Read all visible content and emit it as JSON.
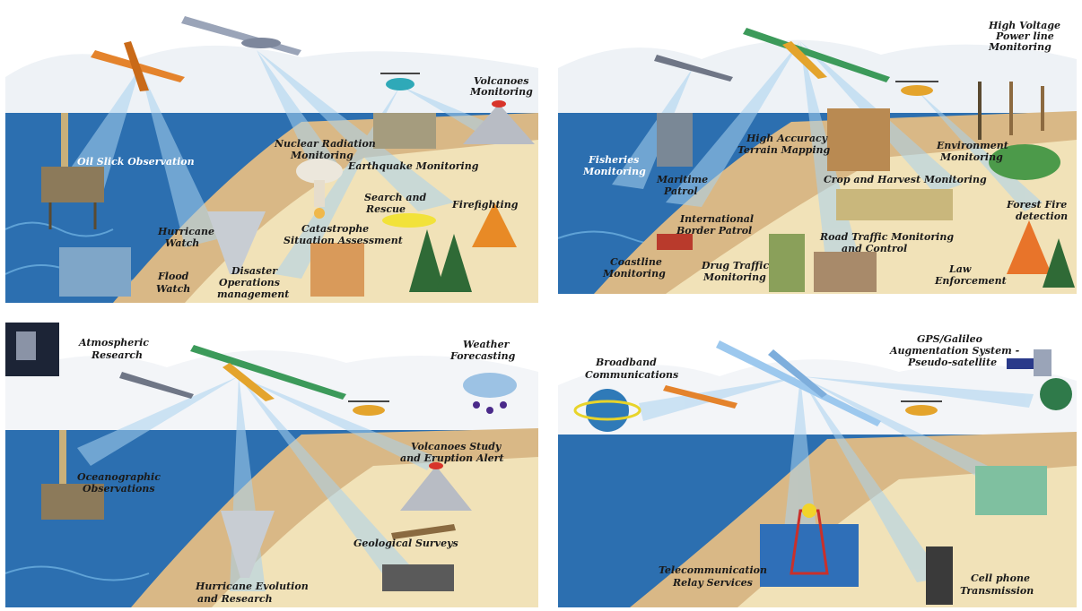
{
  "colors": {
    "sea": "#2c6fb0",
    "sea_light": "#5fa2d6",
    "sand": "#d9b886",
    "sand_light": "#f1e2b8",
    "sky": "#ffffff",
    "beam": "#a9d2ef",
    "label": "#1a1a1a"
  },
  "panels": [
    {
      "id": "civil-security",
      "labels": {
        "oil_slick": "Oil Slick Observation",
        "nuclear_1": "Nuclear Radiation",
        "nuclear_2": "Monitoring",
        "earthquake": "Earthquake Monitoring",
        "volcanoes_1": "Volcanoes",
        "volcanoes_2": "Monitoring",
        "search_1": "Search and",
        "search_2": "Rescue",
        "firefighting": "Firefighting",
        "hurricane_1": "Hurricane",
        "hurricane_2": "Watch",
        "catastrophe_1": "Catastrophe",
        "catastrophe_2": "Situation Assessment",
        "flood_1": "Flood",
        "flood_2": "Watch",
        "disaster_1": "Disaster",
        "disaster_2": "Operations",
        "disaster_3": "management"
      }
    },
    {
      "id": "surveillance",
      "labels": {
        "high_voltage_1": "High Voltage",
        "high_voltage_2": "Power line",
        "high_voltage_3": "Monitoring",
        "fisheries_1": "Fisheries",
        "fisheries_2": "Monitoring",
        "maritime_1": "Maritime",
        "maritime_2": "Patrol",
        "terrain_1": "High Accuracy",
        "terrain_2": "Terrain Mapping",
        "environment_1": "Environment",
        "environment_2": "Monitoring",
        "crop": "Crop and Harvest Monitoring",
        "border_1": "International",
        "border_2": "Border Patrol",
        "forest_fire_1": "Forest Fire",
        "forest_fire_2": "detection",
        "road_traffic_1": "Road Traffic Monitoring",
        "road_traffic_2": "and Control",
        "coastline_1": "Coastline",
        "coastline_2": "Monitoring",
        "drug_1": "Drug Traffic",
        "drug_2": "Monitoring",
        "law_1": "Law",
        "law_2": "Enforcement"
      }
    },
    {
      "id": "earth-science",
      "labels": {
        "atmospheric_1": "Atmospheric",
        "atmospheric_2": "Research",
        "weather_1": "Weather",
        "weather_2": "Forecasting",
        "ocean_1": "Oceanographic",
        "ocean_2": "Observations",
        "volcano_study_1": "Volcanoes Study",
        "volcano_study_2": "and Eruption Alert",
        "geological": "Geological Surveys",
        "hurricane_evo_1": "Hurricane Evolution",
        "hurricane_evo_2": "and Research"
      }
    },
    {
      "id": "communications",
      "labels": {
        "broadband_1": "Broadband",
        "broadband_2": "Communications",
        "gps_1": "GPS/Galileo",
        "gps_2": "Augmentation System -",
        "gps_3": "Pseudo-satellite",
        "telecom_1": "Telecommunication",
        "telecom_2": "Relay Services",
        "cellphone_1": "Cell phone",
        "cellphone_2": "Transmission"
      }
    }
  ]
}
